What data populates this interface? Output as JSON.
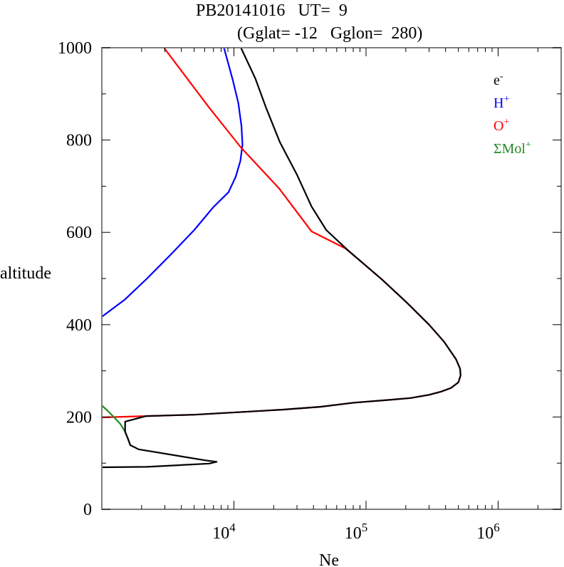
{
  "chart_data": {
    "type": "line",
    "title": "PB20141016   UT=  9",
    "subtitle": "(Gglat= -12   Gglon=  280)",
    "xlabel": "Ne",
    "ylabel": "altitude",
    "xscale": "log",
    "xlim": [
      1000,
      3000000
    ],
    "ylim": [
      0,
      1000
    ],
    "grid": false,
    "legend_position": "top-right",
    "x_ticks": [
      {
        "value": 10000,
        "base": "10",
        "exp": "4"
      },
      {
        "value": 100000,
        "base": "10",
        "exp": "5"
      },
      {
        "value": 1000000,
        "base": "10",
        "exp": "6"
      }
    ],
    "y_ticks": [
      {
        "value": 0,
        "label": "0"
      },
      {
        "value": 200,
        "label": "200"
      },
      {
        "value": 400,
        "label": "400"
      },
      {
        "value": 600,
        "label": "600"
      },
      {
        "value": 800,
        "label": "800"
      },
      {
        "value": 1000,
        "label": "1000"
      }
    ],
    "y_minor_ticks": [
      100,
      300,
      500,
      700,
      900
    ],
    "series": [
      {
        "name": "H+",
        "label_base": "H",
        "label_sup": "+",
        "color": "#0000ff",
        "points": [
          {
            "x": 1000,
            "y": 417
          },
          {
            "x": 1500,
            "y": 455
          },
          {
            "x": 2200,
            "y": 500
          },
          {
            "x": 3300,
            "y": 551
          },
          {
            "x": 5000,
            "y": 605
          },
          {
            "x": 7000,
            "y": 655
          },
          {
            "x": 9100,
            "y": 687
          },
          {
            "x": 10300,
            "y": 720
          },
          {
            "x": 11200,
            "y": 755
          },
          {
            "x": 11600,
            "y": 790
          },
          {
            "x": 11400,
            "y": 830
          },
          {
            "x": 10800,
            "y": 880
          },
          {
            "x": 9800,
            "y": 930
          },
          {
            "x": 8400,
            "y": 1000
          }
        ]
      },
      {
        "name": "O+",
        "label_base": "O",
        "label_sup": "+",
        "color": "#ff0000",
        "points": [
          {
            "x": 1000,
            "y": 199
          },
          {
            "x": 2170,
            "y": 202
          },
          {
            "x": 5000,
            "y": 205
          },
          {
            "x": 11700,
            "y": 211
          },
          {
            "x": 23700,
            "y": 216
          },
          {
            "x": 45000,
            "y": 222
          },
          {
            "x": 81000,
            "y": 231
          },
          {
            "x": 150000,
            "y": 237
          },
          {
            "x": 217000,
            "y": 241
          },
          {
            "x": 300000,
            "y": 248
          },
          {
            "x": 370000,
            "y": 255
          },
          {
            "x": 440000,
            "y": 263
          },
          {
            "x": 500000,
            "y": 275
          },
          {
            "x": 520000,
            "y": 290
          },
          {
            "x": 515000,
            "y": 305
          },
          {
            "x": 480000,
            "y": 325
          },
          {
            "x": 390000,
            "y": 363
          },
          {
            "x": 300000,
            "y": 400
          },
          {
            "x": 200000,
            "y": 450
          },
          {
            "x": 133000,
            "y": 497
          },
          {
            "x": 70000,
            "y": 565
          },
          {
            "x": 38700,
            "y": 602
          },
          {
            "x": 22000,
            "y": 695
          },
          {
            "x": 11300,
            "y": 784
          },
          {
            "x": 6500,
            "y": 870
          },
          {
            "x": 2950,
            "y": 1000
          }
        ]
      },
      {
        "name": "ΣMol+",
        "label_base": "ΣMol",
        "label_sup": "+",
        "color": "#228b22",
        "points": [
          {
            "x": 1000,
            "y": 225
          },
          {
            "x": 1120,
            "y": 212
          },
          {
            "x": 1230,
            "y": 200
          },
          {
            "x": 1380,
            "y": 185
          },
          {
            "x": 1500,
            "y": 168
          },
          {
            "x": 1580,
            "y": 152
          },
          {
            "x": 1640,
            "y": 139
          }
        ]
      },
      {
        "name": "e-",
        "label_base": "e",
        "label_sup": "-",
        "color": "#000000",
        "points": [
          {
            "x": 1000,
            "y": 91
          },
          {
            "x": 2200,
            "y": 92
          },
          {
            "x": 6500,
            "y": 99
          },
          {
            "x": 7400,
            "y": 103
          },
          {
            "x": 6100,
            "y": 106
          },
          {
            "x": 1900,
            "y": 130
          },
          {
            "x": 1640,
            "y": 139
          },
          {
            "x": 1580,
            "y": 152
          },
          {
            "x": 1500,
            "y": 168
          },
          {
            "x": 1500,
            "y": 190
          },
          {
            "x": 2170,
            "y": 202
          },
          {
            "x": 5000,
            "y": 205
          },
          {
            "x": 11700,
            "y": 211
          },
          {
            "x": 23700,
            "y": 216
          },
          {
            "x": 45000,
            "y": 222
          },
          {
            "x": 81000,
            "y": 231
          },
          {
            "x": 150000,
            "y": 237
          },
          {
            "x": 217000,
            "y": 241
          },
          {
            "x": 300000,
            "y": 248
          },
          {
            "x": 370000,
            "y": 255
          },
          {
            "x": 440000,
            "y": 263
          },
          {
            "x": 500000,
            "y": 275
          },
          {
            "x": 520000,
            "y": 290
          },
          {
            "x": 515000,
            "y": 305
          },
          {
            "x": 480000,
            "y": 325
          },
          {
            "x": 390000,
            "y": 363
          },
          {
            "x": 300000,
            "y": 400
          },
          {
            "x": 200000,
            "y": 450
          },
          {
            "x": 133000,
            "y": 497
          },
          {
            "x": 71800,
            "y": 563
          },
          {
            "x": 50000,
            "y": 605
          },
          {
            "x": 38700,
            "y": 656
          },
          {
            "x": 30000,
            "y": 725
          },
          {
            "x": 22300,
            "y": 795
          },
          {
            "x": 17500,
            "y": 870
          },
          {
            "x": 14500,
            "y": 934
          },
          {
            "x": 11300,
            "y": 1000
          }
        ]
      }
    ],
    "legend_order": [
      "e-",
      "H+",
      "O+",
      "ΣMol+"
    ]
  }
}
